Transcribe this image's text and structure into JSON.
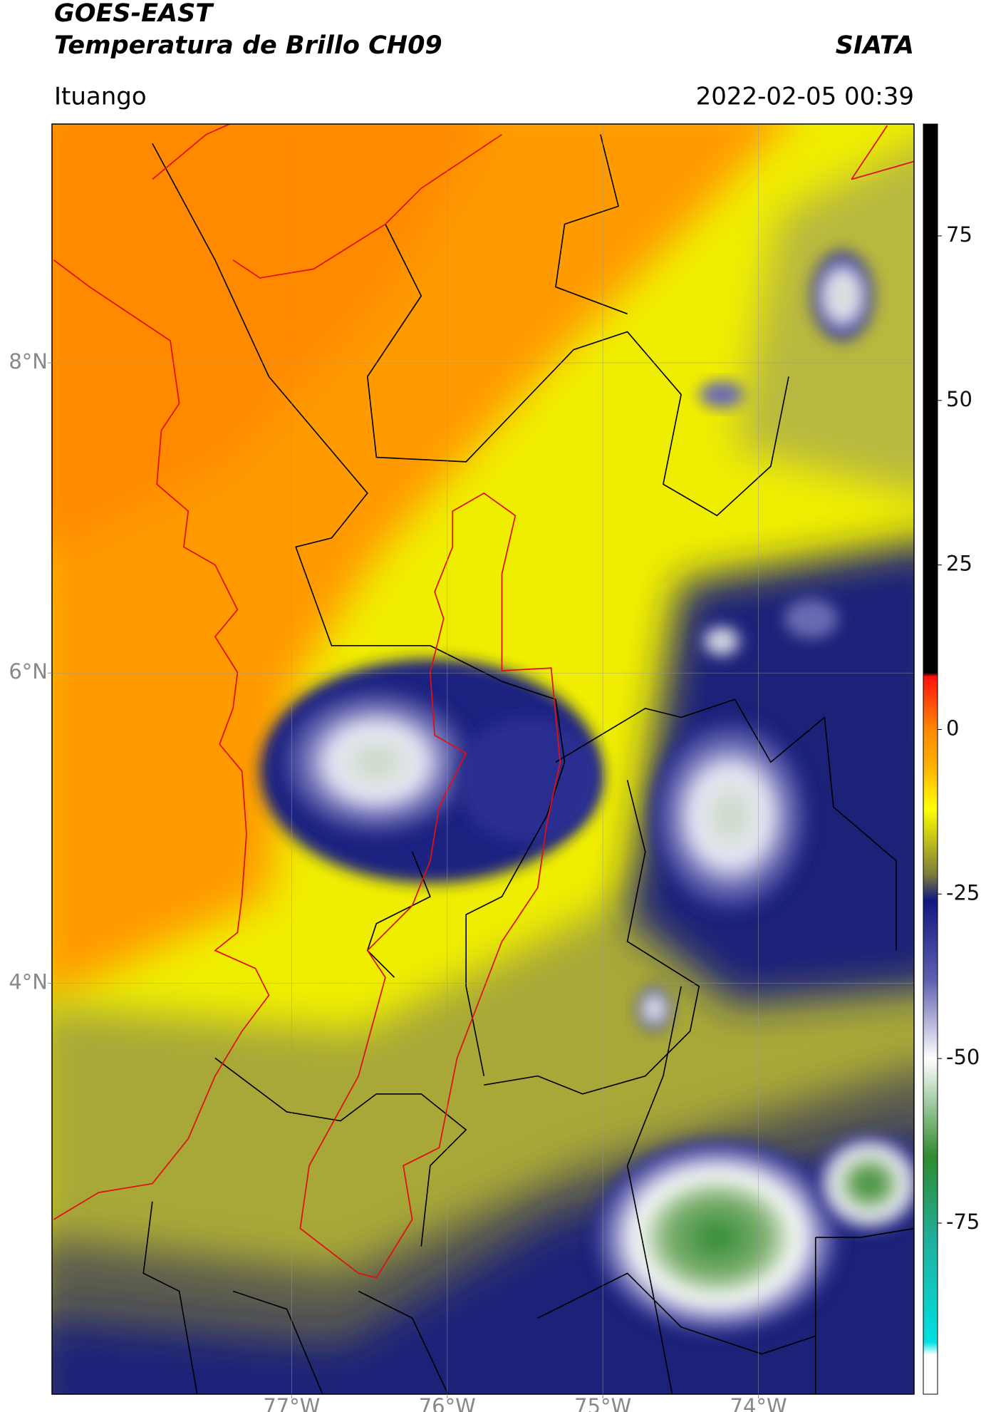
{
  "header": {
    "title_line1": "GOES-EAST",
    "title_line2": "Temperatura de Brillo CH09",
    "source": "SIATA",
    "region": "Ituango",
    "timestamp": "2022-02-05 00:39"
  },
  "map": {
    "xlim": [
      -78.54,
      -73.0
    ],
    "ylim": [
      1.35,
      9.54
    ],
    "xticks": [
      {
        "value": -77,
        "label": "77°W"
      },
      {
        "value": -76,
        "label": "76°W"
      },
      {
        "value": -75,
        "label": "75°W"
      },
      {
        "value": -74,
        "label": "74°W"
      }
    ],
    "yticks": [
      {
        "value": 8,
        "label": "8°N"
      },
      {
        "value": 6,
        "label": "6°N"
      },
      {
        "value": 4,
        "label": "4°N"
      }
    ],
    "grid": true
  },
  "colorbar": {
    "lim": [
      -101,
      92
    ],
    "ticks": [
      75,
      50,
      25,
      0,
      -25,
      -50,
      -75
    ]
  }
}
